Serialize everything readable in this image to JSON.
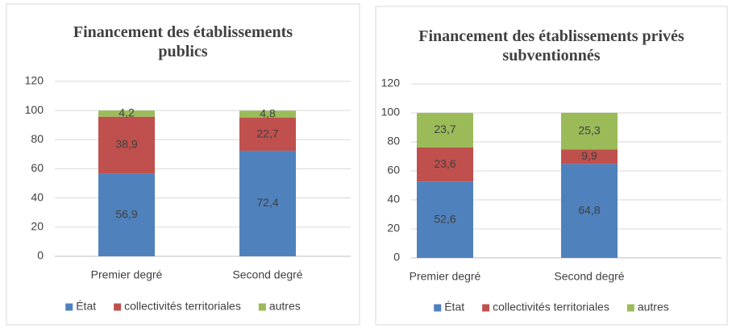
{
  "chart_data": [
    {
      "type": "bar",
      "stacked": true,
      "title": "Financement des établissements publics",
      "categories": [
        "Premier degré",
        "Second degré"
      ],
      "series": [
        {
          "name": "État",
          "color": "#4f81bd",
          "values": [
            56.9,
            72.4
          ],
          "value_labels": [
            "56,9",
            "72,4"
          ]
        },
        {
          "name": "collectivités territoriales",
          "color": "#c0504d",
          "values": [
            38.9,
            22.7
          ],
          "value_labels": [
            "38,9",
            "22,7"
          ]
        },
        {
          "name": "autres",
          "color": "#9bbb59",
          "values": [
            4.2,
            4.8
          ],
          "value_labels": [
            "4,2",
            "4,8"
          ]
        }
      ],
      "ylim": [
        0,
        120
      ],
      "yticks": [
        0,
        20,
        40,
        60,
        80,
        100,
        120
      ],
      "grid": true,
      "legend": "bottom"
    },
    {
      "type": "bar",
      "stacked": true,
      "title": "Financement des établissements privés subventionnés",
      "categories": [
        "Premier degré",
        "Second degré"
      ],
      "series": [
        {
          "name": "État",
          "color": "#4f81bd",
          "values": [
            52.6,
            64.8
          ],
          "value_labels": [
            "52,6",
            "64,8"
          ]
        },
        {
          "name": "collectivités territoriales",
          "color": "#c0504d",
          "values": [
            23.6,
            9.9
          ],
          "value_labels": [
            "23,6",
            "9,9"
          ]
        },
        {
          "name": "autres",
          "color": "#9bbb59",
          "values": [
            23.7,
            25.3
          ],
          "value_labels": [
            "23,7",
            "25,3"
          ]
        }
      ],
      "ylim": [
        0,
        120
      ],
      "yticks": [
        0,
        20,
        40,
        60,
        80,
        100,
        120
      ],
      "grid": true,
      "legend": "bottom"
    }
  ]
}
